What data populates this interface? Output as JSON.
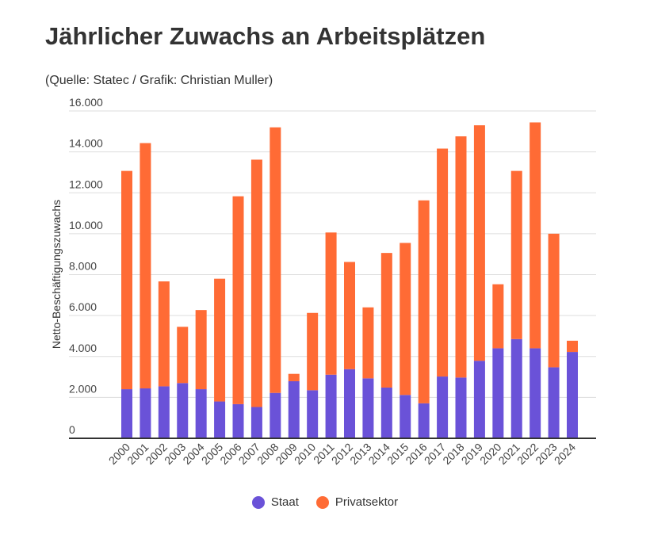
{
  "chart_data": {
    "type": "bar",
    "stacked": true,
    "title": "Jährlicher Zuwachs an Arbeitsplätzen",
    "subtitle": "(Quelle: Statec / Grafik: Christian Muller)",
    "xlabel": "",
    "ylabel": "Netto-Beschäftigungszuwachs",
    "ylim": [
      0,
      16000
    ],
    "yticks": [
      "0",
      "2.000",
      "4.000",
      "6.000",
      "8.000",
      "10.000",
      "12.000",
      "14.000",
      "16.000"
    ],
    "ytick_values": [
      0,
      2000,
      4000,
      6000,
      8000,
      10000,
      12000,
      14000,
      16000
    ],
    "grid": true,
    "legend_position": "bottom",
    "categories": [
      "2000",
      "2001",
      "2002",
      "2003",
      "2004",
      "2005",
      "2006",
      "2007",
      "2008",
      "2009",
      "2010",
      "2011",
      "2012",
      "2013",
      "2014",
      "2015",
      "2016",
      "2017",
      "2018",
      "2019",
      "2020",
      "2021",
      "2022",
      "2023",
      "2024"
    ],
    "series": [
      {
        "name": "Staat",
        "color": "#6a52d8",
        "values": [
          2400,
          2440,
          2540,
          2700,
          2400,
          1800,
          1670,
          1530,
          2220,
          2790,
          2350,
          3110,
          3380,
          2930,
          2480,
          2120,
          1710,
          3020,
          2970,
          3790,
          4400,
          4850,
          4400,
          3470,
          4220
        ]
      },
      {
        "name": "Privatsektor",
        "color": "#ff6b35",
        "values": [
          10670,
          11990,
          5130,
          2750,
          3870,
          6000,
          10160,
          12090,
          12980,
          360,
          3780,
          6950,
          5240,
          3470,
          6580,
          7430,
          9920,
          11140,
          11790,
          11510,
          3130,
          8220,
          11040,
          6530,
          550
        ]
      }
    ]
  }
}
